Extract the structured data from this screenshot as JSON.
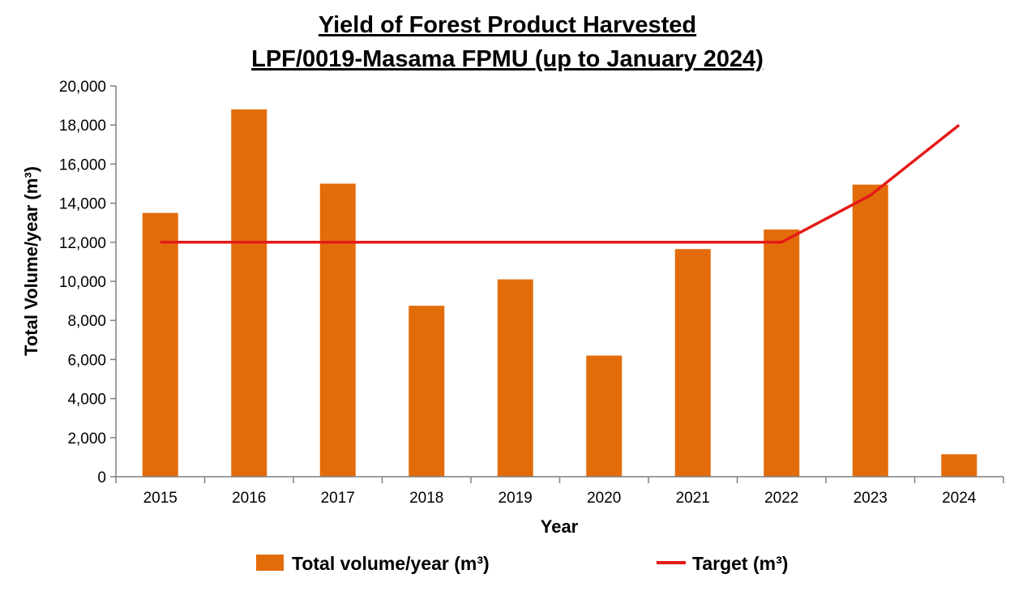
{
  "colors": {
    "bar": "#E36C0A",
    "target_line": "#E41B17",
    "axis": "#7F7F7F"
  },
  "chart_data": {
    "type": "bar",
    "title": "Yield of Forest Product Harvested",
    "subtitle": "LPF/0019-Masama FPMU (up to January 2024)",
    "xlabel": "Year",
    "ylabel": "Total Volume/year (m³)",
    "categories": [
      "2015",
      "2016",
      "2017",
      "2018",
      "2019",
      "2020",
      "2021",
      "2022",
      "2023",
      "2024"
    ],
    "series": [
      {
        "name": "Total volume/year (m³)",
        "type": "bar",
        "values": [
          13500,
          18800,
          15000,
          8750,
          10100,
          6200,
          11650,
          12650,
          14950,
          1150
        ]
      },
      {
        "name": "Target (m³)",
        "type": "line",
        "values": [
          12000,
          12000,
          12000,
          12000,
          12000,
          12000,
          12000,
          12000,
          14400,
          18000
        ]
      }
    ],
    "ylim": [
      0,
      20000
    ],
    "yticks": [
      0,
      2000,
      4000,
      6000,
      8000,
      10000,
      12000,
      14000,
      16000,
      18000,
      20000
    ],
    "ytick_labels": [
      "0",
      "2,000",
      "4,000",
      "6,000",
      "8,000",
      "10,000",
      "12,000",
      "14,000",
      "16,000",
      "18,000",
      "20,000"
    ],
    "grid": false,
    "legend_position": "bottom"
  }
}
